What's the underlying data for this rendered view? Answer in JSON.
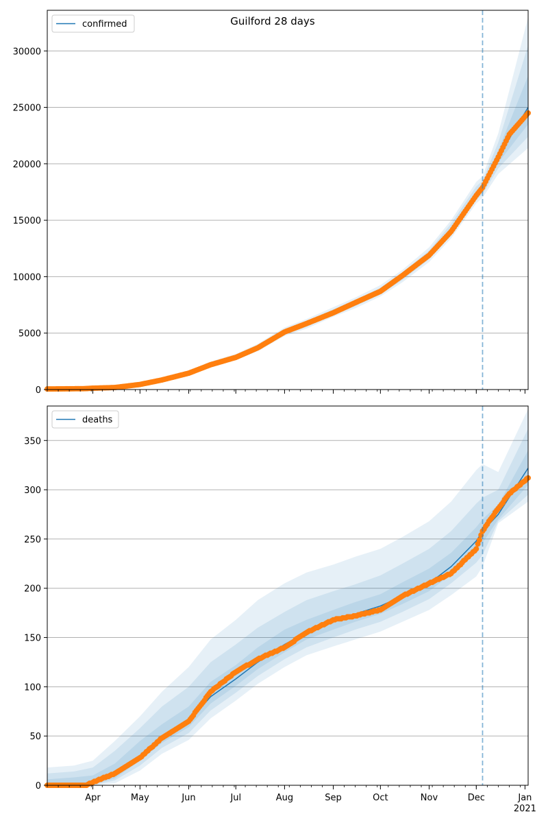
{
  "title": "Guilford 28 days",
  "colors": {
    "model": "#1f77b4",
    "observed": "#ff7f0e",
    "band": "#1f77b4",
    "grid": "#b0b0b0",
    "cutoff": "#1f77b4"
  },
  "chart_data": [
    {
      "type": "line",
      "name": "confirmed-panel",
      "legend": {
        "label": "confirmed",
        "position": "upper-left"
      },
      "x_range": [
        "2020-03-03",
        "2021-01-03"
      ],
      "ylim": [
        0,
        33600
      ],
      "yticks": [
        0,
        5000,
        10000,
        15000,
        20000,
        25000,
        30000
      ],
      "xticks": [
        {
          "date": "2020-04-01",
          "label": ""
        },
        {
          "date": "2020-05-01",
          "label": ""
        },
        {
          "date": "2020-06-01",
          "label": ""
        },
        {
          "date": "2020-07-01",
          "label": ""
        },
        {
          "date": "2020-08-01",
          "label": ""
        },
        {
          "date": "2020-09-01",
          "label": ""
        },
        {
          "date": "2020-10-01",
          "label": ""
        },
        {
          "date": "2020-11-01",
          "label": ""
        },
        {
          "date": "2020-12-01",
          "label": ""
        },
        {
          "date": "2021-01-01",
          "label": ""
        }
      ],
      "grid": "y",
      "cutoff_date": "2020-12-05",
      "model": {
        "dates": [
          "2020-03-03",
          "2020-03-20",
          "2020-04-01",
          "2020-04-15",
          "2020-05-01",
          "2020-05-15",
          "2020-06-01",
          "2020-06-15",
          "2020-07-01",
          "2020-07-15",
          "2020-08-01",
          "2020-08-15",
          "2020-09-01",
          "2020-09-15",
          "2020-10-01",
          "2020-10-15",
          "2020-11-01",
          "2020-11-15",
          "2020-12-01",
          "2020-12-05",
          "2020-12-15",
          "2021-01-03"
        ],
        "values": [
          0,
          30,
          100,
          200,
          450,
          850,
          1450,
          2200,
          2850,
          3700,
          5100,
          5800,
          6850,
          7650,
          8700,
          10000,
          11900,
          14100,
          17300,
          17900,
          20600,
          25000
        ],
        "bands": [
          {
            "lower": [
              0,
              0,
              50,
              120,
              350,
              720,
              1250,
              1950,
              2600,
              3400,
              4750,
              5400,
              6450,
              7200,
              8250,
              9500,
              11300,
              13400,
              16500,
              17000,
              19100,
              21400
            ],
            "upper": [
              100,
              140,
              180,
              300,
              580,
              1000,
              1680,
              2480,
              3150,
              4050,
              5500,
              6250,
              7300,
              8150,
              9250,
              10600,
              12600,
              15000,
              18400,
              18900,
              22700,
              33000
            ]
          },
          {
            "lower": [
              0,
              10,
              70,
              150,
              390,
              770,
              1320,
              2050,
              2700,
              3500,
              4870,
              5550,
              6600,
              7380,
              8430,
              9700,
              11550,
              13650,
              16800,
              17300,
              19600,
              22400
            ],
            "upper": [
              70,
              110,
              150,
              260,
              530,
              950,
              1600,
              2380,
              3050,
              3930,
              5350,
              6080,
              7120,
              7950,
              9030,
              10380,
              12320,
              14700,
              18000,
              18500,
              21900,
              30500
            ]
          },
          {
            "lower": [
              0,
              20,
              85,
              175,
              420,
              810,
              1390,
              2130,
              2780,
              3600,
              4990,
              5680,
              6730,
              7520,
              8570,
              9860,
              11730,
              13880,
              17050,
              17600,
              20100,
              23500
            ],
            "upper": [
              40,
              70,
              120,
              230,
              490,
              900,
              1530,
              2290,
              2940,
              3820,
              5220,
              5930,
              6980,
              7800,
              8850,
              10180,
              12100,
              14380,
              17600,
              18200,
              21200,
              27800
            ]
          }
        ]
      },
      "observed": {
        "dates": [
          "2020-03-03",
          "2020-03-27",
          "2020-04-01",
          "2020-04-15",
          "2020-05-01",
          "2020-05-15",
          "2020-06-01",
          "2020-06-15",
          "2020-07-01",
          "2020-07-15",
          "2020-08-01",
          "2020-08-15",
          "2020-09-01",
          "2020-09-15",
          "2020-10-01",
          "2020-10-15",
          "2020-11-01",
          "2020-11-15",
          "2020-12-01",
          "2020-12-05",
          "2020-12-15",
          "2020-12-22",
          "2021-01-03"
        ],
        "values": [
          50,
          80,
          120,
          180,
          450,
          850,
          1450,
          2200,
          2850,
          3700,
          5100,
          5850,
          6800,
          7700,
          8700,
          10100,
          11900,
          14000,
          17200,
          17900,
          20600,
          22600,
          24500
        ]
      }
    },
    {
      "type": "line",
      "name": "deaths-panel",
      "legend": {
        "label": "deaths",
        "position": "upper-left"
      },
      "x_range": [
        "2020-03-03",
        "2021-01-03"
      ],
      "ylim": [
        0,
        385
      ],
      "yticks": [
        0,
        50,
        100,
        150,
        200,
        250,
        300,
        350
      ],
      "xticks": [
        {
          "date": "2020-04-01",
          "label": "Apr"
        },
        {
          "date": "2020-05-01",
          "label": "May"
        },
        {
          "date": "2020-06-01",
          "label": "Jun"
        },
        {
          "date": "2020-07-01",
          "label": "Jul"
        },
        {
          "date": "2020-08-01",
          "label": "Aug"
        },
        {
          "date": "2020-09-01",
          "label": "Sep"
        },
        {
          "date": "2020-10-01",
          "label": "Oct"
        },
        {
          "date": "2020-11-01",
          "label": "Nov"
        },
        {
          "date": "2020-12-01",
          "label": "Dec"
        },
        {
          "date": "2021-01-01",
          "label": "Jan",
          "sublabel": "2021"
        }
      ],
      "grid": "y",
      "cutoff_date": "2020-12-05",
      "model": {
        "dates": [
          "2020-03-03",
          "2020-03-20",
          "2020-04-01",
          "2020-04-15",
          "2020-05-01",
          "2020-05-15",
          "2020-06-01",
          "2020-06-15",
          "2020-07-01",
          "2020-07-15",
          "2020-08-01",
          "2020-08-15",
          "2020-09-01",
          "2020-09-15",
          "2020-10-01",
          "2020-10-15",
          "2020-11-01",
          "2020-11-15",
          "2020-12-01",
          "2020-12-05",
          "2020-12-15",
          "2021-01-03"
        ],
        "values": [
          0,
          0,
          2,
          10,
          30,
          48,
          65,
          90,
          108,
          125,
          143,
          155,
          166,
          174,
          182,
          192,
          205,
          222,
          248,
          258,
          275,
          322
        ],
        "bands": [
          {
            "lower": [
              0,
              0,
              0,
              2,
              15,
              32,
              46,
              68,
              86,
              103,
              120,
              132,
              141,
              148,
              156,
              166,
              178,
              193,
              212,
              222,
              266,
              288
            ],
            "upper": [
              18,
              20,
              25,
              45,
              70,
              95,
              120,
              148,
              168,
              188,
              205,
              216,
              224,
              232,
              240,
              252,
              268,
              288,
              320,
              326,
              318,
              382
            ]
          },
          {
            "lower": [
              0,
              0,
              0,
              5,
              20,
              38,
              53,
              76,
              94,
              111,
              128,
              140,
              150,
              158,
              166,
              176,
              189,
              205,
              226,
              234,
              268,
              295
            ],
            "upper": [
              12,
              14,
              18,
              35,
              58,
              80,
              100,
              125,
              143,
              160,
              176,
              188,
              197,
              204,
              213,
              225,
              240,
              258,
              286,
              292,
              300,
              362
            ]
          },
          {
            "lower": [
              0,
              0,
              1,
              7,
              25,
              43,
              59,
              83,
              101,
              118,
              135,
              148,
              158,
              166,
              174,
              184,
              197,
              214,
              237,
              246,
              270,
              305
            ],
            "upper": [
              6,
              8,
              10,
              22,
              45,
              62,
              80,
              105,
              122,
              140,
              158,
              168,
              178,
              186,
              194,
              206,
              220,
              236,
              262,
              270,
              285,
              340
            ]
          }
        ]
      },
      "observed": {
        "dates": [
          "2020-03-03",
          "2020-03-28",
          "2020-04-01",
          "2020-04-15",
          "2020-05-01",
          "2020-05-15",
          "2020-06-01",
          "2020-06-15",
          "2020-07-01",
          "2020-07-15",
          "2020-08-01",
          "2020-08-15",
          "2020-09-01",
          "2020-09-15",
          "2020-10-01",
          "2020-10-15",
          "2020-11-01",
          "2020-11-15",
          "2020-12-01",
          "2020-12-05",
          "2020-12-10",
          "2020-12-22",
          "2021-01-03"
        ],
        "values": [
          0,
          0,
          3,
          12,
          28,
          48,
          65,
          95,
          115,
          128,
          140,
          155,
          168,
          172,
          178,
          192,
          205,
          215,
          240,
          258,
          270,
          296,
          312
        ]
      }
    }
  ]
}
